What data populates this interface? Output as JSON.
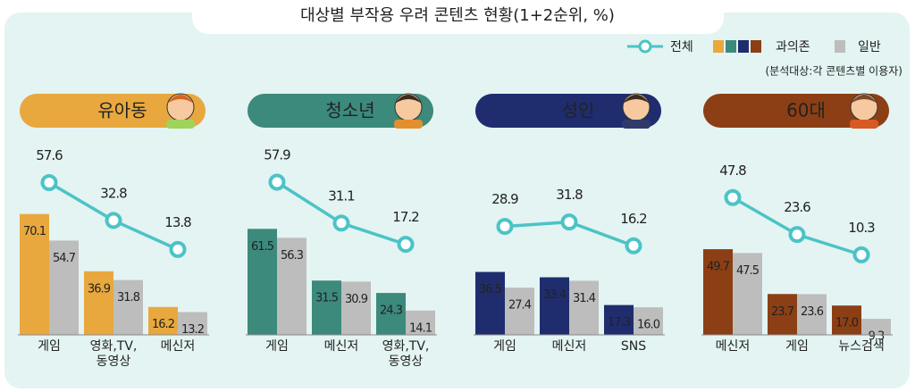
{
  "title": "대상별 부작용 우려 콘텐츠 현황(1+2순위, %)",
  "note": "(분석대상:각 콘텐츠별 이용자)",
  "chart_data": [
    {
      "type": "bar",
      "title": "유아동",
      "categories": [
        "게임",
        "영화,TV,\n동영상",
        "메신저"
      ],
      "series": [
        {
          "name": "전체",
          "type": "line",
          "color": "#4cc3c6",
          "values": [
            57.6,
            32.8,
            13.8
          ]
        },
        {
          "name": "과의존",
          "color": "#e8a83e",
          "values": [
            70.1,
            36.9,
            16.2
          ]
        },
        {
          "name": "일반",
          "color": "#bdbdbd",
          "values": [
            54.7,
            31.8,
            13.2
          ]
        }
      ]
    },
    {
      "type": "bar",
      "title": "청소년",
      "categories": [
        "게임",
        "메신저",
        "영화,TV,\n동영상"
      ],
      "series": [
        {
          "name": "전체",
          "type": "line",
          "color": "#4cc3c6",
          "values": [
            57.9,
            31.1,
            17.2
          ]
        },
        {
          "name": "과의존",
          "color": "#3c8a7c",
          "values": [
            61.5,
            31.5,
            24.3
          ]
        },
        {
          "name": "일반",
          "color": "#bdbdbd",
          "values": [
            56.3,
            30.9,
            14.1
          ]
        }
      ]
    },
    {
      "type": "bar",
      "title": "성인",
      "categories": [
        "게임",
        "메신저",
        "SNS"
      ],
      "series": [
        {
          "name": "전체",
          "type": "line",
          "color": "#4cc3c6",
          "values": [
            28.9,
            31.8,
            16.2
          ]
        },
        {
          "name": "과의존",
          "color": "#1f2d6e",
          "values": [
            36.5,
            33.4,
            17.3
          ]
        },
        {
          "name": "일반",
          "color": "#bdbdbd",
          "values": [
            27.4,
            31.4,
            16.0
          ],
          "value_labels": [
            "27.4",
            "31.4",
            "16.0"
          ]
        }
      ]
    },
    {
      "type": "bar",
      "title": "60대",
      "categories": [
        "메신저",
        "게임",
        "뉴스검색"
      ],
      "series": [
        {
          "name": "전체",
          "type": "line",
          "color": "#4cc3c6",
          "values": [
            47.8,
            23.6,
            10.3
          ]
        },
        {
          "name": "과의존",
          "color": "#8c3f14",
          "values": [
            49.7,
            23.7,
            17.0
          ],
          "value_labels": [
            "49.7",
            "23.7",
            "17.0"
          ]
        },
        {
          "name": "일반",
          "color": "#bdbdbd",
          "values": [
            47.5,
            23.6,
            9.3
          ]
        }
      ]
    }
  ]
}
